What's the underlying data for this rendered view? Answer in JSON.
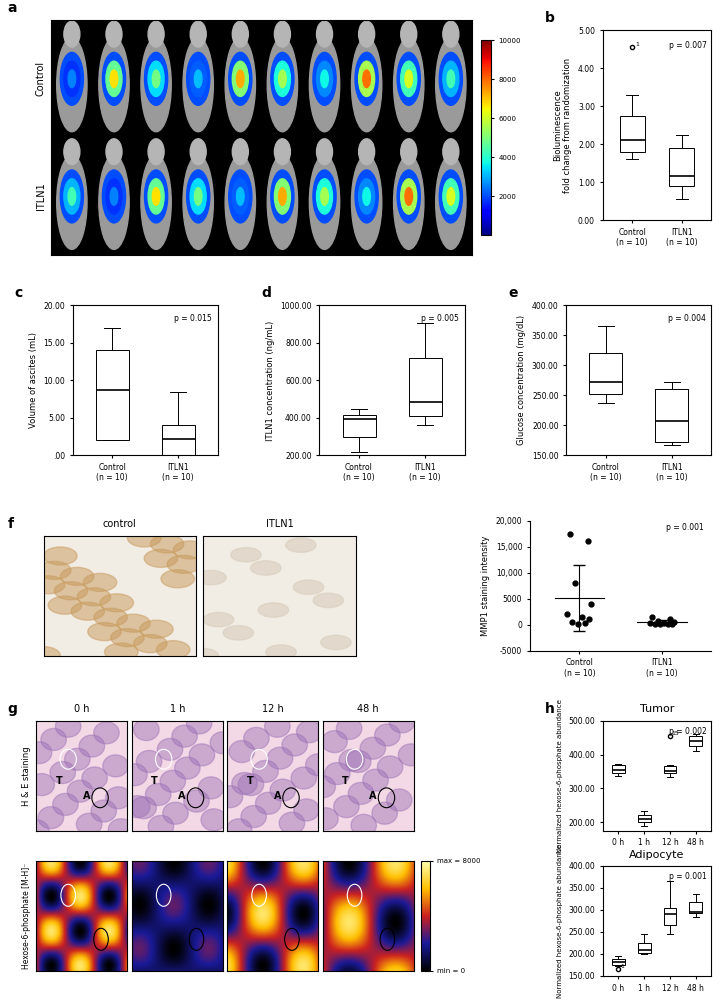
{
  "chart_data": [
    {
      "type": "bioluminescence",
      "panel": "a",
      "rows": [
        "Control",
        "ITLN1"
      ],
      "columns_per_row": 10,
      "colorbar_range": [
        0,
        10000
      ],
      "colorbar_ticks": [
        2000,
        4000,
        6000,
        8000,
        10000
      ]
    },
    {
      "type": "box",
      "panel": "b",
      "ylabel": "Bioluminescence\nfold change from randomization",
      "categories": [
        "Control\n(n = 10)",
        "ITLN1\n(n = 10)"
      ],
      "boxes": [
        {
          "whislo": 1.6,
          "q1": 1.8,
          "med": 2.1,
          "q3": 2.75,
          "whishi": 3.3,
          "outliers": [
            {
              "value": 4.55,
              "label": "1"
            }
          ]
        },
        {
          "whislo": 0.55,
          "q1": 0.9,
          "med": 1.15,
          "q3": 1.9,
          "whishi": 2.25,
          "outliers": []
        }
      ],
      "ylim": [
        0,
        5
      ],
      "yticks": [
        {
          "value": 0,
          "label": "0.00"
        },
        {
          "value": 1,
          "label": "1.00"
        },
        {
          "value": 2,
          "label": "2.00"
        },
        {
          "value": 3,
          "label": "3.00"
        },
        {
          "value": 4,
          "label": "4.00"
        },
        {
          "value": 5,
          "label": "5.00"
        }
      ],
      "annotation": "p = 0.007"
    },
    {
      "type": "box",
      "panel": "c",
      "ylabel": "Volume of ascites (mL)",
      "categories": [
        "Control\n(n = 10)",
        "ITLN1\n(n = 10)"
      ],
      "boxes": [
        {
          "whislo": 2.0,
          "q1": 2.1,
          "med": 8.7,
          "q3": 14.0,
          "whishi": 17.0,
          "outliers": []
        },
        {
          "whislo": 0.0,
          "q1": 0.1,
          "med": 2.2,
          "q3": 4.0,
          "whishi": 8.5,
          "outliers": []
        }
      ],
      "ylim": [
        0,
        20
      ],
      "yticks": [
        {
          "value": 0,
          "label": ".00"
        },
        {
          "value": 5,
          "label": "5.00"
        },
        {
          "value": 10,
          "label": "10.00"
        },
        {
          "value": 15,
          "label": "15.00"
        },
        {
          "value": 20,
          "label": "20.00"
        }
      ],
      "annotation": "p = 0.015"
    },
    {
      "type": "box",
      "panel": "d",
      "ylabel": "ITLN1 concentration (ng/mL)",
      "categories": [
        "Control\n(n = 10)",
        "ITLN1\n(n = 10)"
      ],
      "boxes": [
        {
          "whislo": 220,
          "q1": 300,
          "med": 395,
          "q3": 415,
          "whishi": 450,
          "outliers": []
        },
        {
          "whislo": 360,
          "q1": 410,
          "med": 485,
          "q3": 720,
          "whishi": 905,
          "outliers": []
        }
      ],
      "ylim": [
        200,
        1000
      ],
      "yticks": [
        {
          "value": 200,
          "label": "200.00"
        },
        {
          "value": 400,
          "label": "400.00"
        },
        {
          "value": 600,
          "label": "600.00"
        },
        {
          "value": 800,
          "label": "800.00"
        },
        {
          "value": 1000,
          "label": "1000.00"
        }
      ],
      "annotation": "p = 0.005"
    },
    {
      "type": "box",
      "panel": "e",
      "ylabel": "Glucose concentration (mg/dL)",
      "categories": [
        "Control\n(n = 10)",
        "ITLN1\n(n = 10)"
      ],
      "boxes": [
        {
          "whislo": 237,
          "q1": 252,
          "med": 272,
          "q3": 320,
          "whishi": 365,
          "outliers": []
        },
        {
          "whislo": 167,
          "q1": 172,
          "med": 207,
          "q3": 260,
          "whishi": 273,
          "outliers": []
        }
      ],
      "ylim": [
        150,
        400
      ],
      "yticks": [
        {
          "value": 150,
          "label": "150.00"
        },
        {
          "value": 200,
          "label": "200.00"
        },
        {
          "value": 250,
          "label": "250.00"
        },
        {
          "value": 300,
          "label": "300.00"
        },
        {
          "value": 350,
          "label": "350.00"
        },
        {
          "value": 400,
          "label": "400.00"
        }
      ],
      "annotation": "p = 0.004"
    },
    {
      "type": "ihc",
      "panel": "f",
      "labels": [
        "control",
        "ITLN1"
      ]
    },
    {
      "type": "scatter",
      "ylabel": "MMP1 staining intensity",
      "categories": [
        "Control\n(n = 10)",
        "ITLN1\n(n = 10)"
      ],
      "points": [
        [
          17500,
          16000,
          8000,
          4000,
          2000,
          1500,
          1000,
          500,
          300,
          200
        ],
        [
          1500,
          1100,
          700,
          500,
          400,
          300,
          200,
          150,
          100,
          50
        ]
      ],
      "means": [
        5100,
        500
      ],
      "sd": [
        6300,
        460
      ],
      "ylim": [
        -5000,
        20000
      ],
      "yticks": [
        -5000,
        0,
        5000,
        {
          "value": 10000,
          "label": "10,000"
        },
        {
          "value": 15000,
          "label": "15,000"
        },
        {
          "value": 20000,
          "label": "20,000"
        }
      ],
      "annotation": "p = 0.001"
    },
    {
      "type": "msi",
      "panel": "g",
      "columns": [
        "0 h",
        "1 h",
        "12 h",
        "48 h"
      ],
      "rows": [
        "H & E staining",
        "Hexose-6-phosphate [M-H]⁻"
      ],
      "region_labels": [
        "A",
        "T"
      ],
      "colorbar_range": [
        0,
        8000
      ],
      "colorbar_ticks": [
        {
          "value": 0,
          "label": "min = 0"
        },
        {
          "value": 8000,
          "label": "max = 8000"
        }
      ]
    },
    {
      "type": "box",
      "panel": "h",
      "title": "Tumor",
      "ylabel": "Normalized hexose-6-phosphate abundance",
      "categories": [
        "0 h",
        "1 h",
        "12 h",
        "48 h"
      ],
      "boxes": [
        {
          "whislo": 338,
          "q1": 345,
          "med": 355,
          "q3": 368,
          "whishi": 372,
          "outliers": []
        },
        {
          "whislo": 190,
          "q1": 200,
          "med": 210,
          "q3": 222,
          "whishi": 235,
          "outliers": []
        },
        {
          "whislo": 335,
          "q1": 345,
          "med": 352,
          "q3": 365,
          "whishi": 368,
          "outliers": [
            {
              "value": 455,
              "label": "15"
            }
          ]
        },
        {
          "whislo": 410,
          "q1": 425,
          "med": 440,
          "q3": 455,
          "whishi": 460,
          "outliers": []
        }
      ],
      "ylim": [
        175,
        500
      ],
      "yticks": [
        {
          "value": 200,
          "label": "200.00"
        },
        {
          "value": 300,
          "label": "300.00"
        },
        {
          "value": 400,
          "label": "400.00"
        },
        {
          "value": 500,
          "label": "500.00"
        }
      ],
      "annotation": "p = 0.002"
    },
    {
      "type": "box",
      "title": "Adipocyte",
      "ylabel": "Normalized hexose-6-phosphate abundance",
      "categories": [
        "0 h",
        "1 h",
        "12 h",
        "48 h"
      ],
      "boxes": [
        {
          "whislo": 172,
          "q1": 176,
          "med": 182,
          "q3": 188,
          "whishi": 196,
          "outliers": [
            {
              "value": 165,
              "label": "1"
            }
          ]
        },
        {
          "whislo": 200,
          "q1": 203,
          "med": 210,
          "q3": 225,
          "whishi": 245,
          "outliers": []
        },
        {
          "whislo": 245,
          "q1": 265,
          "med": 290,
          "q3": 305,
          "whishi": 365,
          "outliers": []
        },
        {
          "whislo": 285,
          "q1": 293,
          "med": 296,
          "q3": 318,
          "whishi": 335,
          "outliers": []
        }
      ],
      "ylim": [
        150,
        400
      ],
      "yticks": [
        {
          "value": 150,
          "label": "150.00"
        },
        {
          "value": 200,
          "label": "200.00"
        },
        {
          "value": 250,
          "label": "250.00"
        },
        {
          "value": 300,
          "label": "300.00"
        },
        {
          "value": 350,
          "label": "350.00"
        },
        {
          "value": 400,
          "label": "400.00"
        }
      ],
      "annotation": "p = 0.001"
    }
  ]
}
